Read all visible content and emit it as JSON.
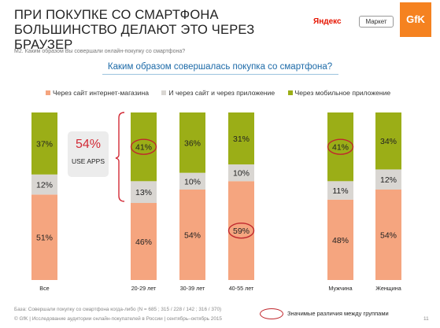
{
  "slide": {
    "title": "ПРИ ПОКУПКЕ СО СМАРТФОНА БОЛЬШИНСТВО ДЕЛАЮТ ЭТО ЧЕРЕЗ БРАУЗЕР",
    "question": "М2. Каким образом Вы совершали онлайн-покупку со смартфона?",
    "logos": {
      "yandex": "Яндекс",
      "market": "Маркет",
      "gfk": "GfK"
    },
    "callout": {
      "value": "54%",
      "label": "USE APPS"
    },
    "base_note": "База: Совершали покупку со смартфона когда-либо (N = 685 ; 315 / 228 / 142 ; 316 / 370)",
    "footer": "© GfK | Исследование аудитории онлайн-покупателей в России | сентябрь–октябрь 2015",
    "significance_label": "Значимые различия между группами",
    "page_number": "11"
  },
  "colors": {
    "site": "#f5a57f",
    "both": "#d9d6d2",
    "app": "#9bae17",
    "highlight": "#c0272d",
    "title_blue": "#1c6aa8"
  },
  "chart_data": {
    "type": "bar",
    "stacked": true,
    "percent": true,
    "title": "Каким образом совершалась покупка со смартфона?",
    "legend_position": "top",
    "categories": [
      "Все",
      "20-29 лет",
      "30-39 лет",
      "40-55 лет",
      "Мужчина",
      "Женщина"
    ],
    "series": [
      {
        "name": "Через сайт интернет-магазина",
        "color": "#f5a57f",
        "values": [
          51,
          46,
          54,
          59,
          48,
          54
        ]
      },
      {
        "name": "И через сайт и через приложение",
        "color": "#d9d6d2",
        "values": [
          12,
          13,
          10,
          10,
          11,
          12
        ]
      },
      {
        "name": "Через мобильное приложение",
        "color": "#9bae17",
        "values": [
          37,
          41,
          36,
          31,
          41,
          34
        ]
      }
    ],
    "highlighted": [
      {
        "category": "20-29 лет",
        "series": "Через мобильное приложение"
      },
      {
        "category": "40-55 лет",
        "series": "Через сайт интернет-магазина"
      },
      {
        "category": "Мужчина",
        "series": "Через мобильное приложение"
      }
    ]
  }
}
